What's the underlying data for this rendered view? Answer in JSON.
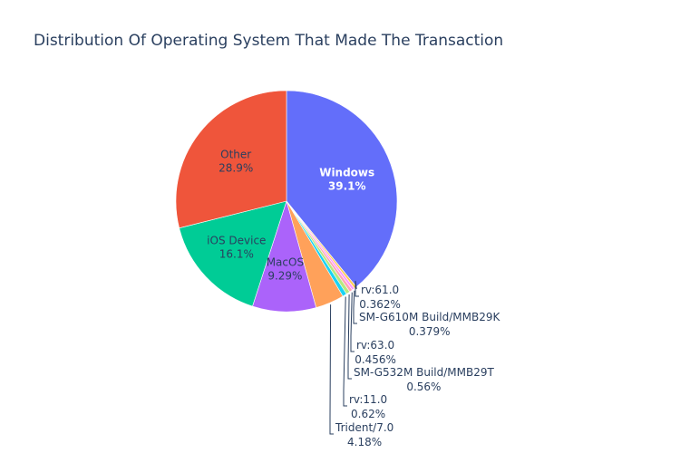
{
  "chart_data": {
    "type": "pie",
    "title": "Distribution Of Operating System That Made The Transaction",
    "slices": [
      {
        "label": "Windows",
        "percent": 39.1,
        "display": "39.1%",
        "color": "#636efa",
        "text_color": "#ffffff",
        "bold": true
      },
      {
        "label": "rv:61.0",
        "percent": 0.362,
        "display": "0.362%",
        "color": "#fecb52"
      },
      {
        "label": "SM-G610M Build/MMB29K",
        "percent": 0.379,
        "display": "0.379%",
        "color": "#ff97ff"
      },
      {
        "label": "rv:63.0",
        "percent": 0.456,
        "display": "0.456%",
        "color": "#ffa4b4"
      },
      {
        "label": "SM-G532M Build/MMB29T",
        "percent": 0.56,
        "display": "0.56%",
        "color": "#b6e880"
      },
      {
        "label": "rv:11.0",
        "percent": 0.62,
        "display": "0.62%",
        "color": "#19d3f3"
      },
      {
        "label": "Trident/7.0",
        "percent": 4.18,
        "display": "4.18%",
        "color": "#ffa15a"
      },
      {
        "label": "MacOS",
        "percent": 9.29,
        "display": "9.29%",
        "color": "#ab63fa",
        "text_color": "#2a3f5f"
      },
      {
        "label": "iOS Device",
        "percent": 16.1,
        "display": "16.1%",
        "color": "#00cc96",
        "text_color": "#2a3f5f"
      },
      {
        "label": "Other",
        "percent": 28.9,
        "display": "28.9%",
        "color": "#ef553b",
        "text_color": "#2a3f5f"
      }
    ]
  }
}
